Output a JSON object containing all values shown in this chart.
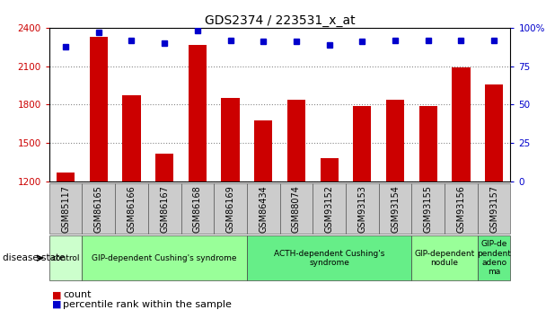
{
  "title": "GDS2374 / 223531_x_at",
  "samples": [
    "GSM85117",
    "GSM86165",
    "GSM86166",
    "GSM86167",
    "GSM86168",
    "GSM86169",
    "GSM86434",
    "GSM88074",
    "GSM93152",
    "GSM93153",
    "GSM93154",
    "GSM93155",
    "GSM93156",
    "GSM93157"
  ],
  "counts": [
    1270,
    2330,
    1870,
    1420,
    2270,
    1850,
    1680,
    1840,
    1380,
    1790,
    1840,
    1790,
    2090,
    1960
  ],
  "percentiles": [
    88,
    97,
    92,
    90,
    98,
    92,
    91,
    91,
    89,
    91,
    92,
    92,
    92,
    92
  ],
  "ylim_left": [
    1200,
    2400
  ],
  "ylim_right": [
    0,
    100
  ],
  "yticks_left": [
    1200,
    1500,
    1800,
    2100,
    2400
  ],
  "yticks_right": [
    0,
    25,
    50,
    75,
    100
  ],
  "bar_color": "#cc0000",
  "dot_color": "#0000cc",
  "disease_groups": [
    {
      "label": "control",
      "start": 0,
      "end": 1,
      "color": "#ccffcc",
      "lighter": false
    },
    {
      "label": "GIP-dependent Cushing's syndrome",
      "start": 1,
      "end": 6,
      "color": "#99ff99",
      "lighter": false
    },
    {
      "label": "ACTH-dependent Cushing's\nsyndrome",
      "start": 6,
      "end": 11,
      "color": "#66ee88",
      "lighter": false
    },
    {
      "label": "GIP-dependent\nnodule",
      "start": 11,
      "end": 13,
      "color": "#99ff99",
      "lighter": false
    },
    {
      "label": "GIP-de\npendent\nadeno\nma",
      "start": 13,
      "end": 14,
      "color": "#66ee88",
      "lighter": false
    }
  ],
  "xlabel_disease": "disease state",
  "legend_count_label": "count",
  "legend_percentile_label": "percentile rank within the sample",
  "bar_width": 0.55,
  "grid_color": "#888888",
  "bg_color": "#ffffff",
  "plot_bg_color": "#ffffff",
  "sample_band_color": "#cccccc",
  "tick_label_color_left": "#cc0000",
  "tick_label_color_right": "#0000cc",
  "title_fontsize": 10,
  "tick_fontsize": 7.5,
  "legend_fontsize": 8,
  "disease_fontsize": 6.5,
  "sample_fontsize": 7
}
